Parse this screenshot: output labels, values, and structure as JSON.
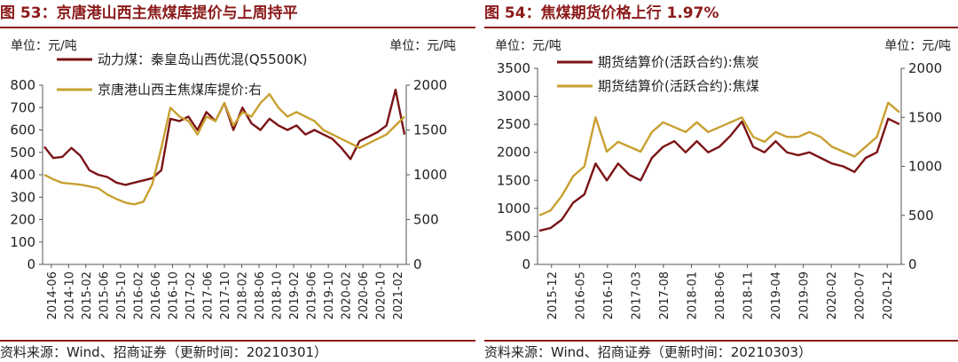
{
  "charts": [
    {
      "title": "图 53：京唐港山西主焦煤库提价与上周持平",
      "source": "资料来源：Wind、招商证券（更新时间：20210301）",
      "chart_data": {
        "type": "line",
        "unit_left": "单位：元/吨",
        "unit_right": "单位：元/吨",
        "y_left": {
          "min": 0,
          "max": 800,
          "ticks": [
            0,
            100,
            200,
            300,
            400,
            500,
            600,
            700,
            800
          ]
        },
        "y_right": {
          "min": 0,
          "max": 2000,
          "ticks": [
            0,
            500,
            1000,
            1500,
            2000
          ]
        },
        "x_tick_labels": [
          "2014-06",
          "2014-10",
          "2015-02",
          "2015-06",
          "2015-10",
          "2016-02",
          "2016-06",
          "2016-10",
          "2017-02",
          "2017-06",
          "2017-10",
          "2018-02",
          "2018-06",
          "2018-10",
          "2019-02",
          "2019-06",
          "2019-10",
          "2020-02",
          "2020-06",
          "2020-10",
          "2021-02"
        ],
        "series": [
          {
            "name": "动力煤：秦皇岛山西优混(Q5500K)",
            "axis": "left",
            "color": "#7B1416",
            "values": [
              525,
              475,
              480,
              520,
              485,
              420,
              400,
              390,
              365,
              355,
              365,
              375,
              385,
              420,
              650,
              640,
              660,
              600,
              680,
              640,
              720,
              600,
              700,
              630,
              600,
              650,
              620,
              600,
              620,
              580,
              600,
              580,
              560,
              520,
              470,
              550,
              570,
              590,
              620,
              780,
              580
            ]
          },
          {
            "name": "京唐港山西主焦煤库提价:右",
            "axis": "right",
            "color": "#C8A030",
            "values": [
              1000,
              950,
              910,
              900,
              890,
              870,
              850,
              780,
              730,
              690,
              670,
              700,
              900,
              1300,
              1750,
              1650,
              1600,
              1450,
              1650,
              1600,
              1800,
              1550,
              1700,
              1650,
              1800,
              1900,
              1750,
              1650,
              1700,
              1650,
              1600,
              1500,
              1450,
              1400,
              1350,
              1300,
              1350,
              1400,
              1450,
              1550,
              1650
            ]
          }
        ]
      }
    },
    {
      "title": "图 54：焦煤期货价格上行 1.97%",
      "source": "资料来源：Wind、招商证券（更新时间：20210303）",
      "chart_data": {
        "type": "line",
        "unit_left": "单位：元/吨",
        "unit_right": "单位：元/吨",
        "y_left": {
          "min": 0,
          "max": 3500,
          "ticks": [
            0,
            500,
            1000,
            1500,
            2000,
            2500,
            3000,
            3500
          ]
        },
        "y_right": {
          "min": 0,
          "max": 2000,
          "ticks": [
            0,
            500,
            1000,
            1500,
            2000
          ]
        },
        "x_tick_labels": [
          "2015-12",
          "2016-05",
          "2016-10",
          "2017-03",
          "2017-08",
          "2018-01",
          "2018-06",
          "2018-11",
          "2019-04",
          "2019-09",
          "2020-02",
          "2020-07",
          "2020-12"
        ],
        "series": [
          {
            "name": "期货结算价(活跃合约):焦炭",
            "axis": "left",
            "color": "#7B1416",
            "values": [
              600,
              650,
              800,
              1100,
              1250,
              1800,
              1500,
              1800,
              1600,
              1500,
              1900,
              2100,
              2200,
              2000,
              2200,
              2000,
              2100,
              2300,
              2550,
              2100,
              2000,
              2200,
              2000,
              1950,
              2000,
              1900,
              1800,
              1750,
              1650,
              1900,
              2000,
              2600,
              2500
            ]
          },
          {
            "name": "期货结算价(活跃合约):焦煤",
            "axis": "right",
            "color": "#C8A030",
            "values": [
              500,
              550,
              700,
              900,
              1000,
              1500,
              1150,
              1250,
              1200,
              1150,
              1350,
              1450,
              1400,
              1350,
              1450,
              1350,
              1400,
              1450,
              1500,
              1300,
              1250,
              1350,
              1300,
              1300,
              1350,
              1300,
              1200,
              1150,
              1100,
              1200,
              1300,
              1650,
              1550
            ]
          }
        ]
      }
    }
  ]
}
